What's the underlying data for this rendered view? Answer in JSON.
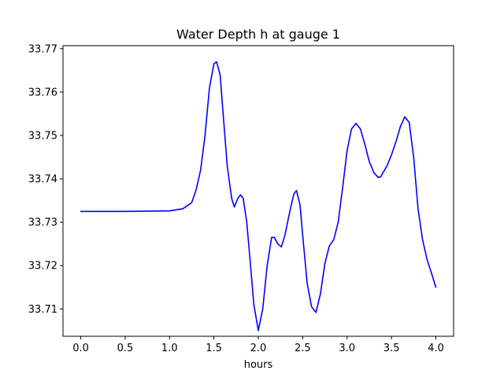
{
  "chart_data": {
    "type": "line",
    "title": "Water Depth h at gauge 1",
    "xlabel": "hours",
    "ylabel": "",
    "xlim": [
      -0.2,
      4.2
    ],
    "ylim": [
      33.7037,
      33.7707
    ],
    "xticks": [
      0.0,
      0.5,
      1.0,
      1.5,
      2.0,
      2.5,
      3.0,
      3.5,
      4.0
    ],
    "xtick_labels": [
      "0.0",
      "0.5",
      "1.0",
      "1.5",
      "2.0",
      "2.5",
      "3.0",
      "3.5",
      "4.0"
    ],
    "yticks": [
      33.71,
      33.72,
      33.73,
      33.74,
      33.75,
      33.76,
      33.77
    ],
    "ytick_labels": [
      "33.71",
      "33.72",
      "33.73",
      "33.74",
      "33.75",
      "33.76",
      "33.77"
    ],
    "grid": false,
    "series": [
      {
        "color": "#0000ff",
        "x": [
          0.0,
          0.5,
          1.0,
          1.15,
          1.25,
          1.3,
          1.35,
          1.4,
          1.45,
          1.5,
          1.53,
          1.57,
          1.6,
          1.65,
          1.7,
          1.73,
          1.77,
          1.8,
          1.83,
          1.87,
          1.9,
          1.95,
          2.0,
          2.05,
          2.1,
          2.15,
          2.18,
          2.22,
          2.26,
          2.3,
          2.35,
          2.4,
          2.43,
          2.47,
          2.5,
          2.55,
          2.6,
          2.65,
          2.7,
          2.75,
          2.8,
          2.85,
          2.9,
          2.95,
          3.0,
          3.05,
          3.1,
          3.15,
          3.2,
          3.25,
          3.3,
          3.35,
          3.38,
          3.45,
          3.5,
          3.55,
          3.6,
          3.65,
          3.7,
          3.75,
          3.8,
          3.85,
          3.9,
          3.95,
          4.0
        ],
        "y": [
          33.7325,
          33.7325,
          33.7326,
          33.7331,
          33.7345,
          33.7375,
          33.742,
          33.75,
          33.761,
          33.7665,
          33.767,
          33.764,
          33.756,
          33.743,
          33.7355,
          33.7335,
          33.7355,
          33.7363,
          33.7355,
          33.73,
          33.723,
          33.711,
          33.705,
          33.71,
          33.72,
          33.7265,
          33.7265,
          33.725,
          33.7243,
          33.727,
          33.732,
          33.7365,
          33.7373,
          33.734,
          33.727,
          33.716,
          33.7105,
          33.7092,
          33.7135,
          33.7205,
          33.7245,
          33.726,
          33.73,
          33.738,
          33.7465,
          33.7515,
          33.7528,
          33.7515,
          33.748,
          33.744,
          33.7415,
          33.7403,
          33.7405,
          33.743,
          33.7455,
          33.7485,
          33.752,
          33.7543,
          33.753,
          33.745,
          33.733,
          33.726,
          33.7215,
          33.7183,
          33.715
        ]
      }
    ]
  }
}
